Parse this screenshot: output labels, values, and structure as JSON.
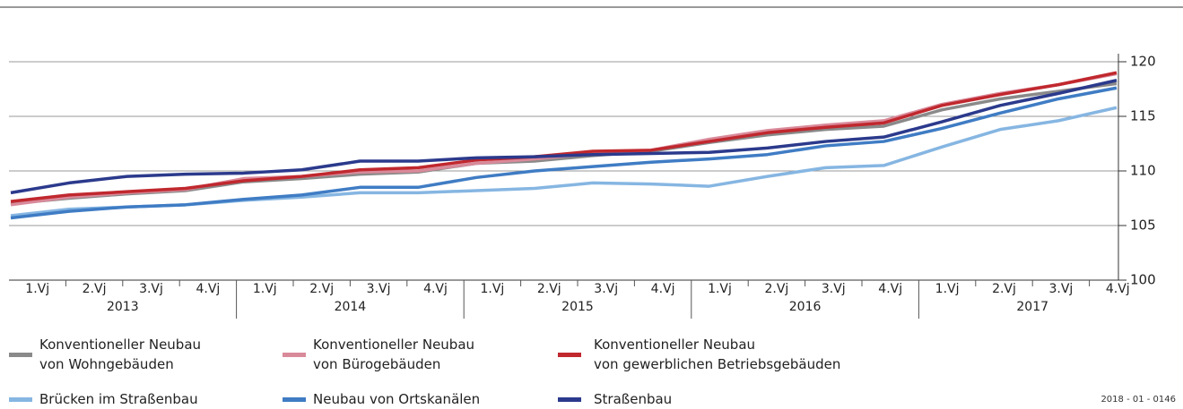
{
  "chart_data": {
    "type": "line",
    "categories": [
      "1.Vj",
      "2.Vj",
      "3.Vj",
      "4.Vj",
      "1.Vj",
      "2.Vj",
      "3.Vj",
      "4.Vj",
      "1.Vj",
      "2.Vj",
      "3.Vj",
      "4.Vj",
      "1.Vj",
      "2.Vj",
      "3.Vj",
      "4.Vj",
      "1.Vj",
      "2.Vj",
      "3.Vj",
      "4.Vj"
    ],
    "groups": [
      "2013",
      "2014",
      "2015",
      "2016",
      "2017"
    ],
    "ylim": [
      100,
      125
    ],
    "yticks": [
      100,
      105,
      110,
      115,
      120
    ],
    "grid": true,
    "series": [
      {
        "name": "Konventioneller Neubau\nvon Wohngebäuden",
        "color": "#8a8a8a",
        "values": [
          107.0,
          107.5,
          107.9,
          108.2,
          109.0,
          109.3,
          109.7,
          109.9,
          110.7,
          110.9,
          111.4,
          111.8,
          112.6,
          113.3,
          113.8,
          114.1,
          115.6,
          116.6,
          117.3,
          118.0
        ]
      },
      {
        "name": "Konventioneller Neubau\nvon Bürogebäuden",
        "color": "#d98a9a",
        "values": [
          106.9,
          107.6,
          108.0,
          108.3,
          109.3,
          109.5,
          109.9,
          110.0,
          110.7,
          111.1,
          111.6,
          111.9,
          112.9,
          113.7,
          114.2,
          114.6,
          116.1,
          117.1,
          117.9,
          118.9
        ]
      },
      {
        "name": "Konventioneller Neubau\nvon gewerblichen Betriebsgebäuden",
        "color": "#c0282e",
        "values": [
          107.2,
          107.8,
          108.1,
          108.4,
          109.1,
          109.5,
          110.1,
          110.3,
          111.0,
          111.3,
          111.8,
          111.9,
          112.7,
          113.5,
          114.0,
          114.4,
          116.0,
          117.0,
          117.9,
          119.0
        ]
      },
      {
        "name": "Brücken im Straßenbau",
        "color": "#86b6e2",
        "values": [
          105.9,
          106.5,
          106.7,
          106.9,
          107.3,
          107.6,
          108.0,
          108.0,
          108.2,
          108.4,
          108.9,
          108.8,
          108.6,
          109.5,
          110.3,
          110.5,
          112.2,
          113.8,
          114.6,
          115.8
        ]
      },
      {
        "name": "Neubau von Ortskanälen",
        "color": "#3f7cc4",
        "values": [
          105.7,
          106.3,
          106.7,
          106.9,
          107.4,
          107.8,
          108.5,
          108.5,
          109.4,
          110.0,
          110.4,
          110.8,
          111.1,
          111.5,
          112.3,
          112.7,
          113.9,
          115.3,
          116.6,
          117.6
        ]
      },
      {
        "name": "Straßenbau",
        "color": "#2b3a8c",
        "values": [
          108.0,
          108.9,
          109.5,
          109.7,
          109.8,
          110.1,
          110.9,
          110.9,
          111.2,
          111.3,
          111.5,
          111.6,
          111.7,
          112.1,
          112.7,
          113.1,
          114.5,
          116.0,
          117.1,
          118.3
        ]
      }
    ],
    "note": "2018 - 01 - 0146"
  }
}
